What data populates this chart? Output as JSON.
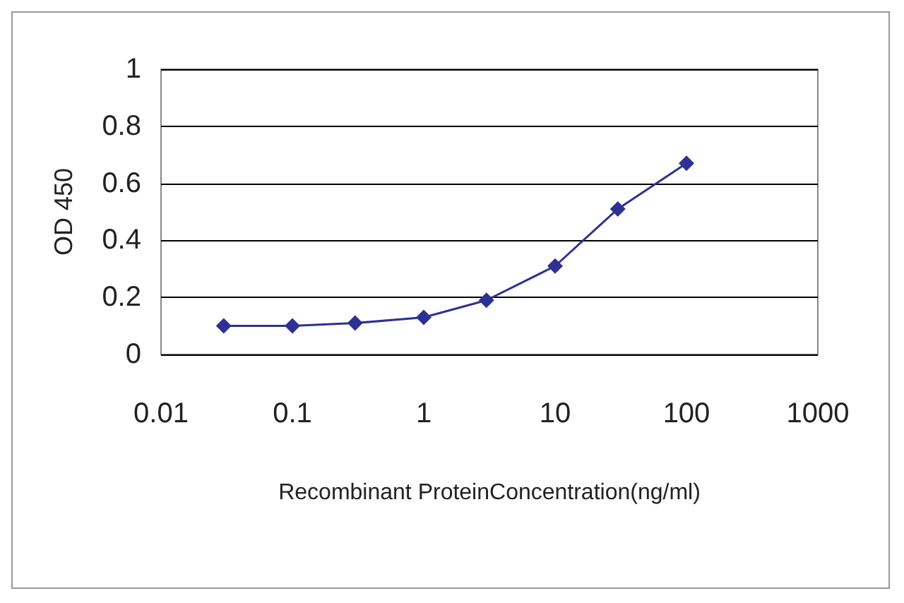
{
  "chart_data": {
    "type": "line",
    "xlabel": "Recombinant ProteinConcentration(ng/ml)",
    "ylabel": "OD 450",
    "x": [
      0.03,
      0.1,
      0.3,
      1,
      3,
      10,
      30,
      100
    ],
    "series": [
      {
        "color": "#2e3192",
        "values": [
          0.1,
          0.1,
          0.11,
          0.13,
          0.19,
          0.31,
          0.51,
          0.67
        ]
      }
    ],
    "log": "x",
    "xlim": [
      0.01,
      1000
    ],
    "xticks": [
      0.01,
      0.1,
      1,
      10,
      100,
      1000
    ],
    "ylim": [
      0,
      1
    ],
    "yticks": [
      0,
      0.2,
      0.4,
      0.6,
      0.8,
      1
    ],
    "grid": "y",
    "marker": "diamond",
    "line_style": "solid"
  }
}
